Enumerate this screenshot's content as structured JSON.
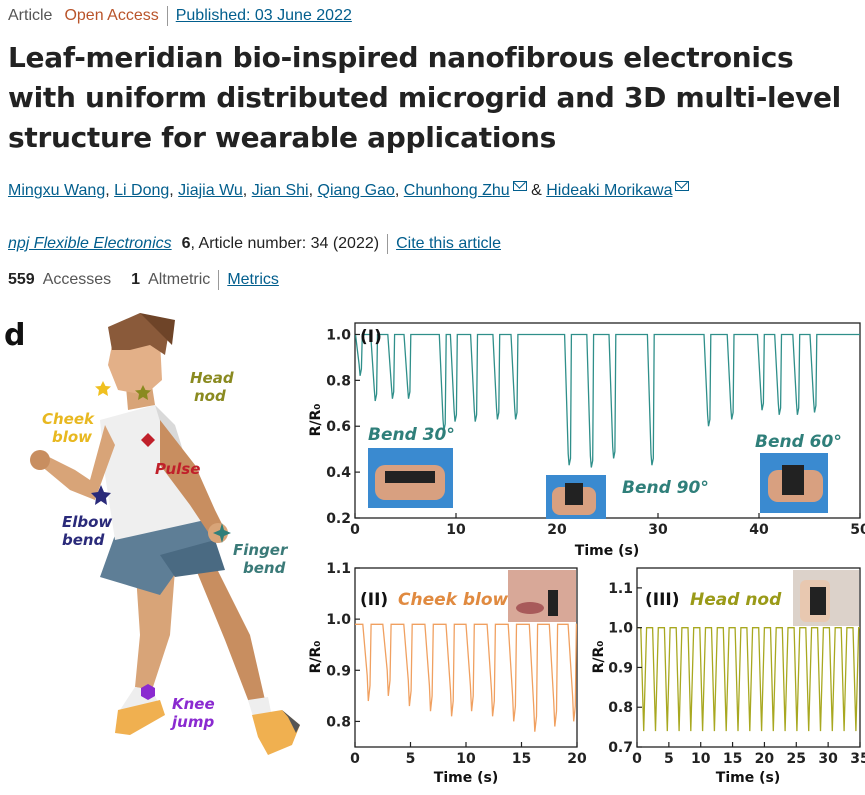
{
  "header": {
    "article_type": "Article",
    "access": "Open Access",
    "published": "Published: 03 June 2022"
  },
  "title": "Leaf-meridian bio-inspired nanofibrous electronics with uniform distributed microgrid and 3D multi-level structure for wearable applications",
  "authors": [
    "Mingxu Wang",
    "Li Dong",
    "Jiajia Wu",
    "Jian Shi",
    "Qiang Gao",
    "Chunhong Zhu",
    "Hideaki Morikawa"
  ],
  "authors_joiner": "&",
  "journal": {
    "name": "npj Flexible Electronics",
    "volume": "6",
    "article_number": ", Article number: 34 (2022)",
    "cite": "Cite this article"
  },
  "metrics": {
    "accesses_count": "559",
    "accesses_label": "Accesses",
    "altmetric_count": "1",
    "altmetric_label": "Altmetric",
    "metrics_link": "Metrics"
  },
  "figure": {
    "panel_label": "d",
    "body_labels": {
      "head_nod": [
        "Head",
        "nod"
      ],
      "cheek_blow": [
        "Cheek",
        "blow"
      ],
      "pulse": "Pulse",
      "elbow_bend": [
        "Elbow",
        "bend"
      ],
      "finger_bend": [
        "Finger",
        "bend"
      ],
      "knee_jump": [
        "Knee",
        "jump"
      ]
    },
    "colors": {
      "teal": "#2f8f8a",
      "orange": "#f0a060",
      "olive": "#a8a820",
      "navy": "#2a2a7a",
      "crimson": "#c0202a",
      "purple": "#8a2ad0"
    }
  },
  "chart_data": [
    {
      "type": "line",
      "panel": "(I)",
      "xlabel": "Time (s)",
      "ylabel": "R/R₀",
      "xlim": [
        0,
        50
      ],
      "ylim": [
        0.2,
        1.05
      ],
      "xticks": [
        "0",
        "10",
        "20",
        "30",
        "40",
        "50"
      ],
      "yticks": [
        "0.2",
        "0.4",
        "0.6",
        "0.8",
        "1.0"
      ],
      "annotations": [
        "Bend 30°",
        "Bend 90°",
        "Bend 60°"
      ],
      "baseline": 1.0,
      "dips": [
        {
          "t": 0.5,
          "min": 0.82
        },
        {
          "t": 2.0,
          "min": 0.71
        },
        {
          "t": 3.7,
          "min": 0.72
        },
        {
          "t": 5.3,
          "min": 0.72
        },
        {
          "t": 8.8,
          "min": 0.58
        },
        {
          "t": 9.9,
          "min": 0.62
        },
        {
          "t": 11.9,
          "min": 0.62
        },
        {
          "t": 14.1,
          "min": 0.63
        },
        {
          "t": 15.9,
          "min": 0.63
        },
        {
          "t": 21.2,
          "min": 0.43
        },
        {
          "t": 23.4,
          "min": 0.42
        },
        {
          "t": 25.6,
          "min": 0.46
        },
        {
          "t": 29.4,
          "min": 0.43
        },
        {
          "t": 35.0,
          "min": 0.6
        },
        {
          "t": 37.3,
          "min": 0.63
        },
        {
          "t": 40.3,
          "min": 0.67
        },
        {
          "t": 42.0,
          "min": 0.65
        },
        {
          "t": 43.8,
          "min": 0.65
        },
        {
          "t": 45.5,
          "min": 0.66
        }
      ]
    },
    {
      "type": "line",
      "panel": "(II)",
      "annotation": "Cheek blow",
      "xlabel": "Time (s)",
      "ylabel": "R/R₀",
      "xlim": [
        0,
        20
      ],
      "ylim": [
        0.75,
        1.1
      ],
      "xticks": [
        "0",
        "5",
        "10",
        "15",
        "20"
      ],
      "yticks": [
        "0.8",
        "0.9",
        "1.0",
        "1.1"
      ],
      "baseline": 0.99,
      "dips": [
        {
          "t": 1.2,
          "min": 0.84
        },
        {
          "t": 3.0,
          "min": 0.85
        },
        {
          "t": 4.9,
          "min": 0.83
        },
        {
          "t": 6.8,
          "min": 0.82
        },
        {
          "t": 8.7,
          "min": 0.81
        },
        {
          "t": 10.5,
          "min": 0.82
        },
        {
          "t": 12.4,
          "min": 0.81
        },
        {
          "t": 14.3,
          "min": 0.8
        },
        {
          "t": 16.2,
          "min": 0.78
        },
        {
          "t": 18.0,
          "min": 0.79
        },
        {
          "t": 19.7,
          "min": 0.8
        }
      ]
    },
    {
      "type": "line",
      "panel": "(III)",
      "annotation": "Head nod",
      "xlabel": "Time (s)",
      "ylabel": "R/R₀",
      "xlim": [
        0,
        35
      ],
      "ylim": [
        0.7,
        1.15
      ],
      "xticks": [
        "0",
        "5",
        "10",
        "15",
        "20",
        "25",
        "30",
        "35"
      ],
      "yticks": [
        "0.7",
        "0.8",
        "0.9",
        "1.0",
        "1.1"
      ],
      "baseline": 1.0,
      "dip_min": 0.74,
      "period": 1.85
    }
  ]
}
